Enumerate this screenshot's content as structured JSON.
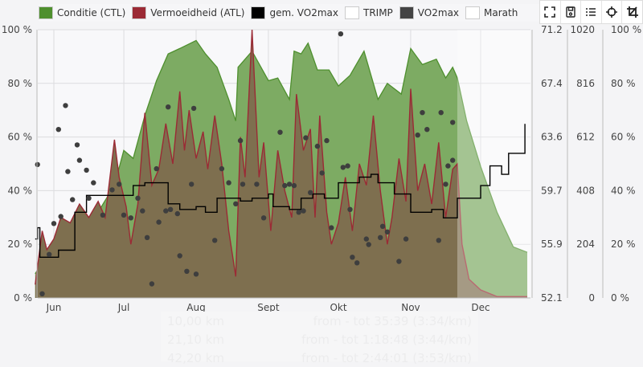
{
  "legend": [
    {
      "label": "Conditie (CTL)",
      "color": "#4e8f2e"
    },
    {
      "label": "Vermoeidheid (ATL)",
      "color": "#9b2a35"
    },
    {
      "label": "gem. VO2max",
      "color": "#000000"
    },
    {
      "label": "TRIMP",
      "color": "#ffffff"
    },
    {
      "label": "VO2max",
      "color": "#444444"
    },
    {
      "label": "Marath",
      "color": "#ffffff"
    }
  ],
  "toolbar": {
    "icons": [
      "fullscreen-icon",
      "save-icon",
      "list-icon",
      "crosshair-icon",
      "crop-icon"
    ]
  },
  "faded_table": [
    {
      "distance": "10,00 km",
      "range": "from - tot",
      "time": "35:39",
      "pace": "(3:34/km)"
    },
    {
      "distance": "21,10 km",
      "range": "from - tot",
      "time": "1:18:48",
      "pace": "(3:44/km)"
    },
    {
      "distance": "42,20 km",
      "range": "from - tot",
      "time": "2:44:01",
      "pace": "(3:53/km)"
    }
  ],
  "chart_data": {
    "type": "area",
    "x_ticks": [
      "Jun",
      "Jul",
      "Aug",
      "Sept",
      "Okt",
      "Nov",
      "Dec"
    ],
    "x_range": [
      "05-24",
      "12-21"
    ],
    "forecast_from": "11-21",
    "grid": true,
    "axes": {
      "left_percent": {
        "ticks": [
          "0 %",
          "20 %",
          "40 %",
          "60 %",
          "80 %",
          "100 %"
        ],
        "range": [
          0,
          100
        ]
      },
      "vo2max": {
        "ticks": [
          "52.1",
          "55.9",
          "59.7",
          "63.6",
          "67.4",
          "71.2"
        ],
        "range": [
          52.1,
          71.2
        ]
      },
      "trimp": {
        "ticks": [
          "0",
          "204",
          "408",
          "612",
          "816",
          "1020"
        ],
        "range": [
          0,
          1020
        ]
      },
      "right_percent": {
        "ticks": [
          "0 %",
          "20 %",
          "40 %",
          "60 %",
          "80 %",
          "100 %"
        ],
        "range": [
          0,
          100
        ]
      }
    },
    "series": [
      {
        "name": "Conditie (CTL)",
        "axis": "left_percent",
        "kind": "area",
        "color": "#4e8f2e",
        "points": [
          [
            "05-24",
            9
          ],
          [
            "06-01",
            20
          ],
          [
            "06-10",
            26
          ],
          [
            "06-20",
            32
          ],
          [
            "06-27",
            42
          ],
          [
            "07-01",
            55
          ],
          [
            "07-05",
            52
          ],
          [
            "07-10",
            68
          ],
          [
            "07-15",
            81
          ],
          [
            "07-20",
            91
          ],
          [
            "07-25",
            93
          ],
          [
            "08-01",
            96
          ],
          [
            "08-05",
            91
          ],
          [
            "08-10",
            86
          ],
          [
            "08-15",
            74
          ],
          [
            "08-18",
            66
          ],
          [
            "08-19",
            86
          ],
          [
            "08-25",
            92
          ],
          [
            "09-01",
            81
          ],
          [
            "09-05",
            82
          ],
          [
            "09-10",
            74
          ],
          [
            "09-12",
            92
          ],
          [
            "09-15",
            91
          ],
          [
            "09-18",
            95
          ],
          [
            "09-22",
            85
          ],
          [
            "09-27",
            85
          ],
          [
            "10-01",
            79
          ],
          [
            "10-06",
            83
          ],
          [
            "10-12",
            92
          ],
          [
            "10-18",
            74
          ],
          [
            "10-22",
            80
          ],
          [
            "10-28",
            76
          ],
          [
            "11-01",
            93
          ],
          [
            "11-06",
            87
          ],
          [
            "11-12",
            89
          ],
          [
            "11-16",
            82
          ],
          [
            "11-19",
            86
          ],
          [
            "11-21",
            82
          ],
          [
            "11-25",
            66
          ],
          [
            "12-01",
            49
          ],
          [
            "12-08",
            32
          ],
          [
            "12-15",
            19
          ],
          [
            "12-21",
            17
          ]
        ]
      },
      {
        "name": "Vermoeidheid (ATL)",
        "axis": "left_percent",
        "kind": "area",
        "color": "#9b2a35",
        "points": [
          [
            "05-24",
            5
          ],
          [
            "05-27",
            25
          ],
          [
            "05-29",
            18
          ],
          [
            "06-01",
            22
          ],
          [
            "06-04",
            30
          ],
          [
            "06-08",
            28
          ],
          [
            "06-12",
            35
          ],
          [
            "06-16",
            30
          ],
          [
            "06-20",
            36
          ],
          [
            "06-23",
            30
          ],
          [
            "06-27",
            59
          ],
          [
            "06-29",
            45
          ],
          [
            "07-02",
            34
          ],
          [
            "07-04",
            20
          ],
          [
            "07-07",
            35
          ],
          [
            "07-10",
            69
          ],
          [
            "07-13",
            42
          ],
          [
            "07-16",
            48
          ],
          [
            "07-19",
            65
          ],
          [
            "07-22",
            50
          ],
          [
            "07-25",
            77
          ],
          [
            "07-27",
            55
          ],
          [
            "07-29",
            70
          ],
          [
            "08-01",
            52
          ],
          [
            "08-04",
            62
          ],
          [
            "08-06",
            48
          ],
          [
            "08-09",
            68
          ],
          [
            "08-12",
            50
          ],
          [
            "08-15",
            25
          ],
          [
            "08-18",
            8
          ],
          [
            "08-20",
            60
          ],
          [
            "08-22",
            45
          ],
          [
            "08-25",
            100
          ],
          [
            "08-28",
            45
          ],
          [
            "08-30",
            58
          ],
          [
            "09-02",
            25
          ],
          [
            "09-05",
            55
          ],
          [
            "09-08",
            40
          ],
          [
            "09-11",
            30
          ],
          [
            "09-13",
            76
          ],
          [
            "09-16",
            55
          ],
          [
            "09-19",
            63
          ],
          [
            "09-21",
            30
          ],
          [
            "09-23",
            68
          ],
          [
            "09-26",
            32
          ],
          [
            "09-28",
            20
          ],
          [
            "10-01",
            28
          ],
          [
            "10-04",
            45
          ],
          [
            "10-07",
            25
          ],
          [
            "10-10",
            50
          ],
          [
            "10-13",
            42
          ],
          [
            "10-16",
            68
          ],
          [
            "10-19",
            40
          ],
          [
            "10-22",
            20
          ],
          [
            "10-24",
            30
          ],
          [
            "10-27",
            52
          ],
          [
            "10-30",
            36
          ],
          [
            "11-01",
            78
          ],
          [
            "11-04",
            40
          ],
          [
            "11-07",
            50
          ],
          [
            "11-10",
            35
          ],
          [
            "11-13",
            58
          ],
          [
            "11-16",
            30
          ],
          [
            "11-19",
            48
          ],
          [
            "11-21",
            50
          ],
          [
            "11-23",
            20
          ],
          [
            "11-26",
            7
          ],
          [
            "12-01",
            3
          ],
          [
            "12-08",
            0.5
          ],
          [
            "12-21",
            0.5
          ]
        ]
      },
      {
        "name": "gem. VO2max",
        "axis": "vo2max",
        "kind": "step-line",
        "color": "#000000",
        "points": [
          [
            "05-24",
            56.3
          ],
          [
            "05-25",
            57.1
          ],
          [
            "05-26",
            55.0
          ],
          [
            "06-03",
            55.5
          ],
          [
            "06-10",
            58.2
          ],
          [
            "06-15",
            59.4
          ],
          [
            "07-01",
            59.4
          ],
          [
            "07-05",
            60.1
          ],
          [
            "07-10",
            60.3
          ],
          [
            "07-20",
            58.8
          ],
          [
            "07-25",
            58.4
          ],
          [
            "08-01",
            58.6
          ],
          [
            "08-05",
            58.2
          ],
          [
            "08-10",
            59.2
          ],
          [
            "08-20",
            59.0
          ],
          [
            "08-25",
            59.2
          ],
          [
            "09-01",
            59.5
          ],
          [
            "09-03",
            58.6
          ],
          [
            "09-10",
            58.4
          ],
          [
            "09-15",
            59.2
          ],
          [
            "09-20",
            59.5
          ],
          [
            "09-25",
            59.2
          ],
          [
            "10-01",
            60.3
          ],
          [
            "10-10",
            60.7
          ],
          [
            "10-15",
            60.9
          ],
          [
            "10-18",
            60.3
          ],
          [
            "10-25",
            59.5
          ],
          [
            "11-01",
            58.2
          ],
          [
            "11-10",
            58.4
          ],
          [
            "11-15",
            57.8
          ],
          [
            "11-21",
            59.2
          ],
          [
            "12-01",
            60.1
          ],
          [
            "12-05",
            61.5
          ],
          [
            "12-10",
            60.9
          ],
          [
            "12-13",
            62.4
          ],
          [
            "12-18",
            62.4
          ],
          [
            "12-20",
            64.5
          ]
        ]
      },
      {
        "name": "VO2max",
        "axis": "vo2max",
        "kind": "scatter",
        "color": "#444444",
        "points": [
          [
            "05-25",
            61.6
          ],
          [
            "05-27",
            52.4
          ],
          [
            "05-30",
            55.2
          ],
          [
            "06-01",
            57.4
          ],
          [
            "06-03",
            64.1
          ],
          [
            "06-04",
            57.9
          ],
          [
            "06-06",
            65.8
          ],
          [
            "06-07",
            61.1
          ],
          [
            "06-09",
            59.1
          ],
          [
            "06-11",
            63.0
          ],
          [
            "06-12",
            61.9
          ],
          [
            "06-15",
            61.2
          ],
          [
            "06-16",
            59.2
          ],
          [
            "06-18",
            60.3
          ],
          [
            "06-22",
            58.0
          ],
          [
            "06-26",
            59.8
          ],
          [
            "06-29",
            60.2
          ],
          [
            "07-01",
            58.0
          ],
          [
            "07-04",
            57.8
          ],
          [
            "07-07",
            59.2
          ],
          [
            "07-09",
            58.3
          ],
          [
            "07-11",
            56.4
          ],
          [
            "07-13",
            53.1
          ],
          [
            "07-15",
            61.3
          ],
          [
            "07-16",
            57.5
          ],
          [
            "07-19",
            58.3
          ],
          [
            "07-20",
            65.7
          ],
          [
            "07-21",
            58.4
          ],
          [
            "07-24",
            58.1
          ],
          [
            "07-25",
            55.1
          ],
          [
            "07-28",
            54.0
          ],
          [
            "07-31",
            65.6
          ],
          [
            "07-30",
            60.2
          ],
          [
            "08-01",
            53.8
          ],
          [
            "08-09",
            56.2
          ],
          [
            "08-12",
            61.3
          ],
          [
            "08-15",
            60.3
          ],
          [
            "08-18",
            58.8
          ],
          [
            "08-20",
            63.3
          ],
          [
            "08-21",
            60.2
          ],
          [
            "08-27",
            60.2
          ],
          [
            "08-30",
            57.8
          ],
          [
            "09-06",
            63.9
          ],
          [
            "09-08",
            60.1
          ],
          [
            "09-10",
            60.2
          ],
          [
            "09-12",
            60.1
          ],
          [
            "09-14",
            58.2
          ],
          [
            "09-16",
            58.3
          ],
          [
            "09-17",
            63.5
          ],
          [
            "09-19",
            59.6
          ],
          [
            "09-22",
            62.9
          ],
          [
            "09-24",
            61.0
          ],
          [
            "09-26",
            63.3
          ],
          [
            "09-28",
            57.1
          ],
          [
            "10-02",
            70.9
          ],
          [
            "10-03",
            61.4
          ],
          [
            "10-05",
            61.5
          ],
          [
            "10-06",
            58.4
          ],
          [
            "10-07",
            55.0
          ],
          [
            "10-09",
            54.6
          ],
          [
            "10-13",
            56.3
          ],
          [
            "10-14",
            55.9
          ],
          [
            "10-19",
            56.4
          ],
          [
            "10-20",
            57.2
          ],
          [
            "10-22",
            56.8
          ],
          [
            "10-27",
            54.7
          ],
          [
            "10-30",
            56.3
          ],
          [
            "11-04",
            63.7
          ],
          [
            "11-06",
            65.3
          ],
          [
            "11-08",
            64.1
          ],
          [
            "11-13",
            56.2
          ],
          [
            "11-14",
            65.3
          ],
          [
            "11-16",
            60.2
          ],
          [
            "11-17",
            61.5
          ],
          [
            "11-19",
            61.9
          ],
          [
            "11-19",
            64.6
          ]
        ]
      }
    ]
  }
}
